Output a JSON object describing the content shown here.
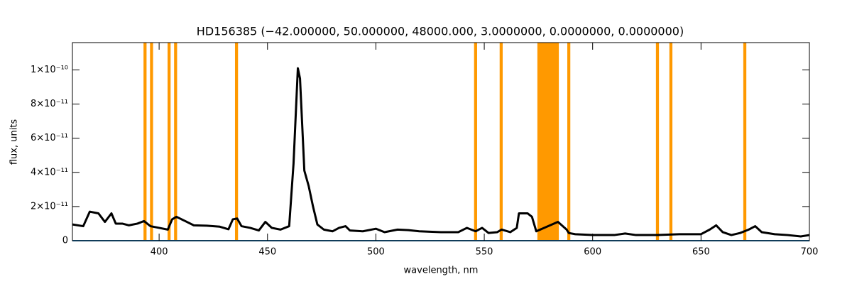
{
  "chart_data": {
    "type": "line",
    "title": "HD156385    (−42.000000, 50.000000, 48000.000, 3.0000000, 0.0000000, 0.0000000)",
    "x_label": "wavelength, nm",
    "y_label": "flux, units",
    "xlim": [
      360,
      700
    ],
    "ylim": [
      0,
      1.16e-10
    ],
    "xticks": [
      400,
      450,
      500,
      550,
      600,
      650,
      700
    ],
    "yticks": [
      0,
      {
        "value": 2e-11,
        "label": "2×10⁻¹¹"
      },
      {
        "value": 4e-11,
        "label": "4×10⁻¹¹"
      },
      {
        "value": 6e-11,
        "label": "6×10⁻¹¹"
      },
      {
        "value": 8e-11,
        "label": "8×10⁻¹¹"
      },
      {
        "value": 1e-10,
        "label": "1×10⁻¹⁰"
      }
    ],
    "bands_color": "#ff9900",
    "bands": [
      [
        392.8,
        394.2
      ],
      [
        395.8,
        397.2
      ],
      [
        403.9,
        405.3
      ],
      [
        406.9,
        408.3
      ],
      [
        435.0,
        436.4
      ],
      [
        545.3,
        546.7
      ],
      [
        557.1,
        558.5
      ],
      [
        574.5,
        584.4
      ],
      [
        588.3,
        589.7
      ],
      [
        629.2,
        630.6
      ],
      [
        635.4,
        636.8
      ],
      [
        669.5,
        670.9
      ]
    ],
    "series": [
      {
        "color": "#000000",
        "x": [
          360,
          365,
          368,
          372,
          375,
          378,
          380,
          383,
          386,
          390,
          393,
          396,
          400,
          404,
          406,
          408,
          412,
          416,
          422,
          428,
          432,
          434,
          436,
          438,
          442,
          446,
          449,
          452,
          456,
          460,
          462,
          464,
          465,
          467,
          469,
          471,
          473,
          476,
          480,
          483,
          486,
          488,
          494,
          500,
          504,
          510,
          515,
          520,
          530,
          538,
          542,
          546,
          549,
          552,
          556,
          558,
          562,
          565,
          566,
          570,
          572,
          574,
          584,
          588,
          589,
          592,
          600,
          610,
          615,
          620,
          630,
          640,
          650,
          654,
          657,
          660,
          664,
          668,
          672,
          675,
          678,
          684,
          690,
          696,
          700
        ],
        "values": [
          9.5e-12,
          8.5e-12,
          1.7e-11,
          1.6e-11,
          1.1e-11,
          1.6e-11,
          1e-11,
          1e-11,
          9e-12,
          1e-11,
          1.15e-11,
          8.5e-12,
          7.5e-12,
          6.5e-12,
          1.25e-11,
          1.4e-11,
          1.15e-11,
          9e-12,
          8.8e-12,
          8.2e-12,
          6.7e-12,
          1.25e-11,
          1.3e-11,
          8.5e-12,
          7.5e-12,
          6e-12,
          1.1e-11,
          7.5e-12,
          6.5e-12,
          8.5e-12,
          4.5e-11,
          1.01e-10,
          9.5e-11,
          4.1e-11,
          3.2e-11,
          2e-11,
          9.5e-12,
          6.5e-12,
          5.5e-12,
          7.5e-12,
          8.5e-12,
          6e-12,
          5.5e-12,
          7e-12,
          5e-12,
          6.5e-12,
          6.2e-12,
          5.5e-12,
          5e-12,
          5e-12,
          7.5e-12,
          5.5e-12,
          7.5e-12,
          4.5e-12,
          5e-12,
          6.5e-12,
          5e-12,
          7.5e-12,
          1.6e-11,
          1.6e-11,
          1.4e-11,
          5.5e-12,
          1.1e-11,
          6.5e-12,
          4.5e-12,
          3.8e-12,
          3.3e-12,
          3.3e-12,
          4.2e-12,
          3.3e-12,
          3.3e-12,
          3.8e-12,
          3.8e-12,
          6.5e-12,
          9e-12,
          5e-12,
          3.3e-12,
          4.5e-12,
          6.5e-12,
          8.5e-12,
          5e-12,
          3.8e-12,
          3.3e-12,
          2.5e-12,
          3.3e-12
        ]
      },
      {
        "color": "#1f77b4",
        "x": [
          360,
          700
        ],
        "values": [
          0,
          0
        ]
      }
    ]
  }
}
